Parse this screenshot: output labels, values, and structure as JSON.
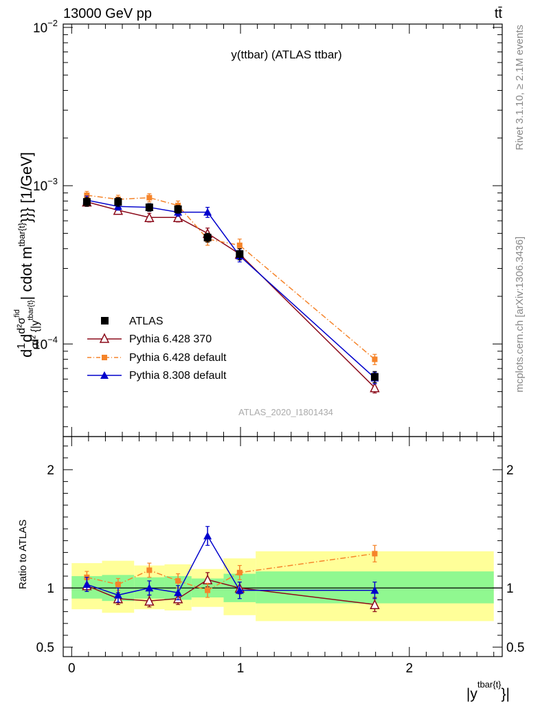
{
  "header": {
    "energy_label": "13000 GeV pp",
    "process_label": "tt̄",
    "rivet_label": "Rivet 3.1.10, ≥ 2.1M events",
    "mcplots_label": "mcplots.cern.ch [arXiv:1306.3436]",
    "analysis_id": "ATLAS_2020_I1801434"
  },
  "chart_data": [
    {
      "type": "scatter",
      "title": "y(ttbar) (ATLAS ttbar)",
      "ylabel": "d1/σdd²σ^fid/d²{|y^tbar{t}| cdot m^tbar{t}}} [1/GeV]",
      "ylabel_parts": {
        "main": "d",
        "frac_top": "1",
        "frac_bottom": "σ",
        "d": "d",
        "frac2_top": "d²σ",
        "frac2_top_sup": "fid",
        "frac2_bottom": "d² {|y",
        "frac2_bottom_sup": "tbar{t}",
        "rest": "| cdot m",
        "rest_sup": "tbar{t}",
        "rest_end": "}}} [1/GeV]"
      },
      "yscale": "log",
      "ylim": [
        2.6e-05,
        0.0105
      ],
      "xlim": [
        -0.05,
        2.55
      ],
      "yticks": [
        {
          "value": 0.0001,
          "base": "10",
          "exp": "−4"
        },
        {
          "value": 0.001,
          "base": "10",
          "exp": "−3"
        },
        {
          "value": 0.01,
          "base": "10",
          "exp": "−2"
        }
      ],
      "legend": {
        "placement": "lower-left",
        "entries": [
          "ATLAS",
          "Pythia 6.428 370",
          "Pythia 6.428 default",
          "Pythia 8.308 default"
        ]
      },
      "data_bins": [
        {
          "lo": 0.0,
          "hi": 0.18
        },
        {
          "lo": 0.18,
          "hi": 0.37
        },
        {
          "lo": 0.37,
          "hi": 0.55
        },
        {
          "lo": 0.55,
          "hi": 0.71
        },
        {
          "lo": 0.71,
          "hi": 0.9
        },
        {
          "lo": 0.9,
          "hi": 1.09
        },
        {
          "lo": 1.09,
          "hi": 2.5
        }
      ],
      "series": [
        {
          "name": "ATLAS",
          "color": "#000000",
          "marker": "square",
          "x": [
            0.09,
            0.275,
            0.46,
            0.63,
            0.805,
            0.995,
            1.795
          ],
          "y": [
            0.00079,
            0.00079,
            0.00073,
            0.00071,
            0.00047,
            0.00037,
            6.2e-05
          ],
          "yerr": [
            5e-05,
            5e-05,
            4e-05,
            4e-05,
            3e-05,
            3e-05,
            5e-06
          ]
        },
        {
          "name": "Pythia 6.428 370",
          "color": "#8b0a1a",
          "marker": "triangle-open",
          "line": "solid",
          "x": [
            0.09,
            0.275,
            0.46,
            0.63,
            0.805,
            0.995,
            1.795
          ],
          "y": [
            0.00079,
            0.0007,
            0.00063,
            0.00063,
            0.0005,
            0.00037,
            5.3e-05
          ],
          "yerr": [
            4e-05,
            4e-05,
            4e-05,
            4e-05,
            4e-05,
            3e-05,
            4e-06
          ]
        },
        {
          "name": "Pythia 6.428 default",
          "color": "#f5842a",
          "marker": "square-small",
          "line": "dashdot",
          "x": [
            0.09,
            0.275,
            0.46,
            0.63,
            0.805,
            0.995,
            1.795
          ],
          "y": [
            0.00087,
            0.00082,
            0.00084,
            0.00075,
            0.00046,
            0.00042,
            8e-05
          ],
          "yerr": [
            5e-05,
            5e-05,
            5e-05,
            5e-05,
            4e-05,
            4e-05,
            6e-06
          ]
        },
        {
          "name": "Pythia 8.308 default",
          "color": "#0000cc",
          "marker": "triangle",
          "line": "solid",
          "x": [
            0.09,
            0.275,
            0.46,
            0.63,
            0.805,
            0.995,
            1.795
          ],
          "y": [
            0.00081,
            0.00074,
            0.00073,
            0.00068,
            0.00068,
            0.00036,
            6.1e-05
          ],
          "yerr": [
            5e-05,
            4e-05,
            4e-05,
            4e-05,
            5e-05,
            3e-05,
            5e-06
          ]
        }
      ]
    },
    {
      "type": "scatter",
      "ylabel": "Ratio to ATLAS",
      "xlabel": "|y^tbar{t}}|",
      "xlabel_parts": {
        "main": "|y",
        "sup": "tbar{t}",
        "end": "}|"
      },
      "ylim": [
        0.42,
        2.28
      ],
      "xlim": [
        -0.05,
        2.55
      ],
      "yticks": [
        {
          "value": 0.5,
          "label": "0.5"
        },
        {
          "value": 1,
          "label": "1"
        },
        {
          "value": 2,
          "label": "2"
        }
      ],
      "xticks": [
        {
          "value": 0,
          "label": "0"
        },
        {
          "value": 1,
          "label": "1"
        },
        {
          "value": 2,
          "label": "2"
        }
      ],
      "bands": {
        "green_color": "#90f890",
        "yellow_color": "#ffff99",
        "green": [
          {
            "lo": 0.0,
            "hi": 0.18,
            "down": 0.91,
            "up": 1.1
          },
          {
            "lo": 0.18,
            "hi": 0.37,
            "down": 0.89,
            "up": 1.11
          },
          {
            "lo": 0.37,
            "hi": 0.55,
            "down": 0.91,
            "up": 1.09
          },
          {
            "lo": 0.55,
            "hi": 0.71,
            "down": 0.9,
            "up": 1.1
          },
          {
            "lo": 0.71,
            "hi": 0.9,
            "down": 0.92,
            "up": 1.08
          },
          {
            "lo": 0.9,
            "hi": 1.09,
            "down": 0.88,
            "up": 1.12
          },
          {
            "lo": 1.09,
            "hi": 2.5,
            "down": 0.87,
            "up": 1.14
          }
        ],
        "yellow": [
          {
            "lo": 0.0,
            "hi": 0.18,
            "down": 0.82,
            "up": 1.21
          },
          {
            "lo": 0.18,
            "hi": 0.37,
            "down": 0.79,
            "up": 1.23
          },
          {
            "lo": 0.37,
            "hi": 0.55,
            "down": 0.82,
            "up": 1.19
          },
          {
            "lo": 0.55,
            "hi": 0.71,
            "down": 0.81,
            "up": 1.2
          },
          {
            "lo": 0.71,
            "hi": 0.9,
            "down": 0.84,
            "up": 1.16
          },
          {
            "lo": 0.9,
            "hi": 1.09,
            "down": 0.77,
            "up": 1.25
          },
          {
            "lo": 1.09,
            "hi": 2.5,
            "down": 0.72,
            "up": 1.31
          }
        ]
      },
      "series": [
        {
          "name": "Pythia 6.428 370",
          "color": "#8b0a1a",
          "marker": "triangle-open",
          "line": "solid",
          "x": [
            0.09,
            0.275,
            0.46,
            0.63,
            0.805,
            0.995,
            1.795
          ],
          "y": [
            1.02,
            0.91,
            0.89,
            0.91,
            1.07,
            1.0,
            0.86
          ],
          "yerr": [
            0.05,
            0.05,
            0.05,
            0.05,
            0.06,
            0.05,
            0.06
          ]
        },
        {
          "name": "Pythia 6.428 default",
          "color": "#f5842a",
          "marker": "square-small",
          "line": "dashdot",
          "x": [
            0.09,
            0.275,
            0.46,
            0.63,
            0.805,
            0.995,
            1.795
          ],
          "y": [
            1.09,
            1.03,
            1.15,
            1.06,
            0.98,
            1.13,
            1.29
          ],
          "yerr": [
            0.05,
            0.05,
            0.06,
            0.06,
            0.06,
            0.06,
            0.07
          ]
        },
        {
          "name": "Pythia 8.308 default",
          "color": "#0000cc",
          "marker": "triangle",
          "line": "solid",
          "x": [
            0.09,
            0.275,
            0.46,
            0.63,
            0.805,
            0.995,
            1.795
          ],
          "y": [
            1.03,
            0.94,
            1.0,
            0.96,
            1.44,
            0.98,
            0.98
          ],
          "yerr": [
            0.06,
            0.06,
            0.06,
            0.06,
            0.08,
            0.07,
            0.07
          ]
        }
      ]
    }
  ]
}
